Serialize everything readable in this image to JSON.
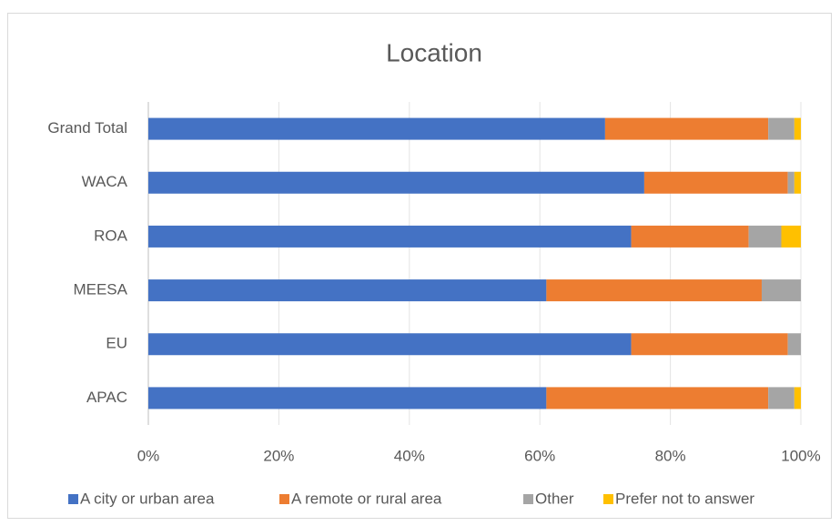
{
  "chart_data": {
    "type": "stacked-bar-horizontal",
    "title": "Location",
    "categories": [
      "APAC",
      "EU",
      "MEESA",
      "ROA",
      "WACA",
      "Grand Total"
    ],
    "series": [
      {
        "name": "A city or urban area",
        "color": "#4472c4",
        "values": [
          61,
          74,
          61,
          74,
          76,
          70
        ]
      },
      {
        "name": "A remote or rural area",
        "color": "#ed7d31",
        "values": [
          34,
          24,
          33,
          18,
          22,
          25
        ]
      },
      {
        "name": "Other",
        "color": "#a5a5a5",
        "values": [
          4,
          2,
          6,
          5,
          1,
          4
        ]
      },
      {
        "name": "Prefer not to answer",
        "color": "#ffc000",
        "values": [
          1,
          0,
          0,
          3,
          1,
          1
        ]
      }
    ],
    "xlim": [
      0,
      100
    ],
    "xticks": [
      {
        "value": 0,
        "label": "0%"
      },
      {
        "value": 20,
        "label": "20%"
      },
      {
        "value": 40,
        "label": "40%"
      },
      {
        "value": 60,
        "label": "60%"
      },
      {
        "value": 80,
        "label": "80%"
      },
      {
        "value": 100,
        "label": "100%"
      }
    ],
    "grid": true,
    "legend": "bottom"
  }
}
